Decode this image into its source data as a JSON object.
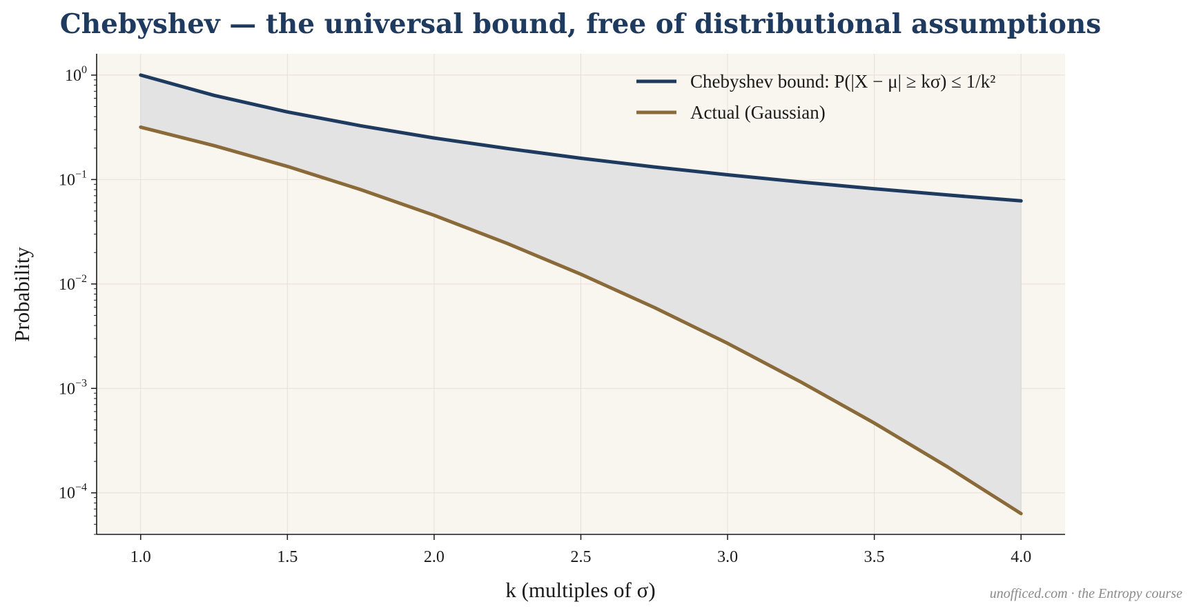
{
  "chart_data": {
    "type": "line",
    "title": "Chebyshev — the universal bound, free of distributional assumptions",
    "xlabel": "k (multiples of σ)",
    "ylabel": "Probability",
    "yscale": "log",
    "xlim": [
      0.85,
      4.15
    ],
    "ylim": [
      4e-05,
      1.6
    ],
    "grid": true,
    "legend_position": "top-right",
    "x_ticks": [
      1.0,
      1.5,
      2.0,
      2.5,
      3.0,
      3.5,
      4.0
    ],
    "x_tick_labels": [
      "1.0",
      "1.5",
      "2.0",
      "2.5",
      "3.0",
      "3.5",
      "4.0"
    ],
    "y_ticks": [
      {
        "value": 1,
        "base": "10",
        "exp": "0"
      },
      {
        "value": 0.1,
        "base": "10",
        "exp": "−1"
      },
      {
        "value": 0.01,
        "base": "10",
        "exp": "−2"
      },
      {
        "value": 0.001,
        "base": "10",
        "exp": "−3"
      },
      {
        "value": 0.0001,
        "base": "10",
        "exp": "−4"
      }
    ],
    "x": [
      1.0,
      1.25,
      1.5,
      1.75,
      2.0,
      2.25,
      2.5,
      2.75,
      3.0,
      3.25,
      3.5,
      3.75,
      4.0
    ],
    "series": [
      {
        "name": "Chebyshev bound: P(|X − μ| ≥ kσ) ≤ 1/k²",
        "color": "#1f3a5f",
        "values": [
          1.0,
          0.64,
          0.444,
          0.327,
          0.25,
          0.198,
          0.16,
          0.132,
          0.111,
          0.0947,
          0.0816,
          0.0711,
          0.0625
        ]
      },
      {
        "name": "Actual (Gaussian)",
        "color": "#8b6a3a",
        "values": [
          0.3173,
          0.2113,
          0.1336,
          0.0801,
          0.0455,
          0.0244,
          0.0124,
          0.00596,
          0.0027,
          0.00115,
          0.000465,
          0.000177,
          6.33e-05
        ]
      }
    ],
    "fill_between": {
      "color": "#e3e3e3"
    },
    "plot_background": "#f9f6ef",
    "grid_color": "#e4e0d8"
  },
  "credit": "unofficed.com · the Entropy course"
}
